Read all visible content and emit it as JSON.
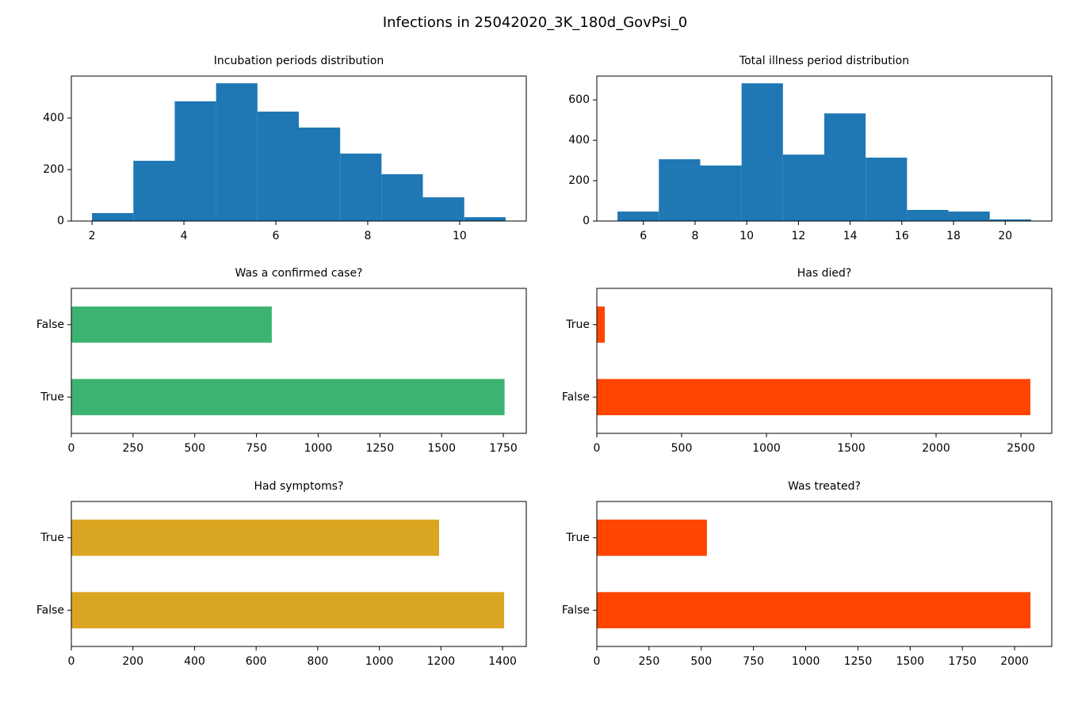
{
  "title": "Infections in 25042020_3K_180d_GovPsi_0",
  "chart_data": [
    {
      "type": "histogram",
      "title": "Incubation periods distribution",
      "color": "#1f77b4",
      "bins": [
        2,
        2.9,
        3.8,
        4.7,
        5.6,
        6.5,
        7.4,
        8.3,
        9.2,
        10.1,
        11
      ],
      "values": [
        31,
        234,
        465,
        535,
        425,
        363,
        262,
        182,
        92,
        15
      ],
      "xlim": [
        1.55,
        11.45
      ],
      "xticks": [
        2,
        4,
        6,
        8,
        10
      ],
      "ylim": [
        0,
        563
      ],
      "yticks": [
        0,
        200,
        400
      ]
    },
    {
      "type": "histogram",
      "title": "Total illness period distribution",
      "color": "#1f77b4",
      "bins": [
        5,
        6.6,
        8.2,
        9.8,
        11.4,
        13,
        14.6,
        16.2,
        17.8,
        19.4,
        21
      ],
      "values": [
        47,
        306,
        275,
        682,
        329,
        533,
        314,
        55,
        47,
        8
      ],
      "xlim": [
        4.2,
        21.8
      ],
      "xticks": [
        6,
        8,
        10,
        12,
        14,
        16,
        18,
        20
      ],
      "ylim": [
        0,
        718
      ],
      "yticks": [
        0,
        200,
        400,
        600
      ]
    },
    {
      "type": "barh",
      "title": "Was a confirmed case?",
      "color": "#3cb371",
      "categories": [
        "True",
        "False"
      ],
      "values": [
        1755,
        812
      ],
      "xlim": [
        0,
        1843
      ],
      "xticks": [
        0,
        250,
        500,
        750,
        1000,
        1250,
        1500,
        1750
      ]
    },
    {
      "type": "barh",
      "title": "Has died?",
      "color": "#ff4500",
      "categories": [
        "False",
        "True"
      ],
      "values": [
        2556,
        47
      ],
      "xlim": [
        0,
        2682
      ],
      "xticks": [
        0,
        500,
        1000,
        1500,
        2000,
        2500
      ]
    },
    {
      "type": "barh",
      "title": "Had symptoms?",
      "color": "#daa520",
      "categories": [
        "False",
        "True"
      ],
      "values": [
        1405,
        1194
      ],
      "xlim": [
        0,
        1477
      ],
      "xticks": [
        0,
        200,
        400,
        600,
        800,
        1000,
        1200,
        1400
      ]
    },
    {
      "type": "barh",
      "title": "Was treated?",
      "color": "#ff4500",
      "categories": [
        "False",
        "True"
      ],
      "values": [
        2076,
        527
      ],
      "xlim": [
        0,
        2178
      ],
      "xticks": [
        0,
        250,
        500,
        750,
        1000,
        1250,
        1500,
        1750,
        2000
      ]
    }
  ]
}
